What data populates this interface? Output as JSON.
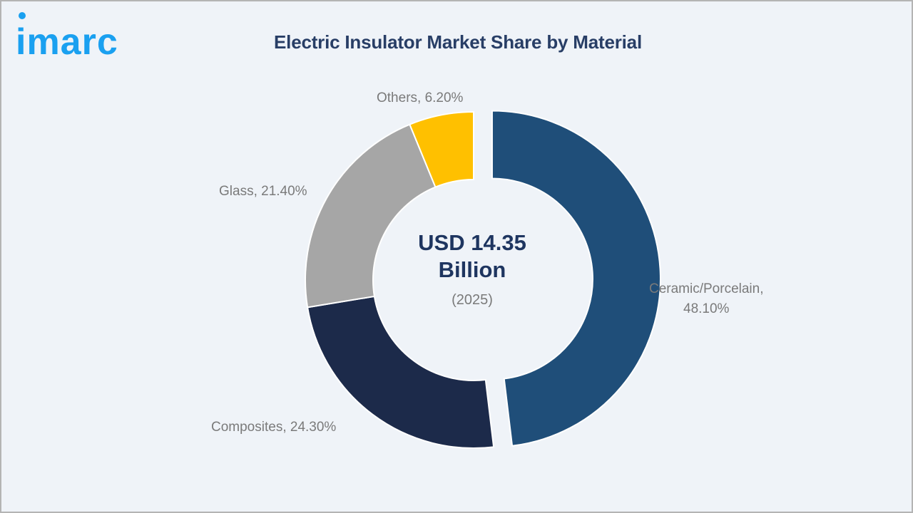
{
  "brand": {
    "logo_text": "imarc",
    "logo_color": "#1aa0f0"
  },
  "title": "Electric Insulator Market Share by Material",
  "center": {
    "line1": "USD 14.35",
    "line2": "Billion",
    "line3": "(2025)"
  },
  "labels": {
    "ceramic_line1": "Ceramic/Porcelain,",
    "ceramic_line2": "48.10%",
    "composites": "Composites, 24.30%",
    "glass": "Glass, 21.40%",
    "others": "Others, 6.20%"
  },
  "chart_data": {
    "type": "pie",
    "variant": "donut",
    "title": "Electric Insulator Market Share by Material",
    "center_text": "USD 14.35 Billion (2025)",
    "categories": [
      "Ceramic/Porcelain",
      "Composites",
      "Glass",
      "Others"
    ],
    "values": [
      48.1,
      24.3,
      21.4,
      6.2
    ],
    "unit": "%",
    "colors": [
      "#1f4e79",
      "#1c2a4a",
      "#a6a6a6",
      "#ffc000"
    ],
    "exploded": [
      "Ceramic/Porcelain"
    ],
    "start_angle_deg": 0,
    "direction": "clockwise",
    "legend": "none (data labels outside slices)"
  }
}
